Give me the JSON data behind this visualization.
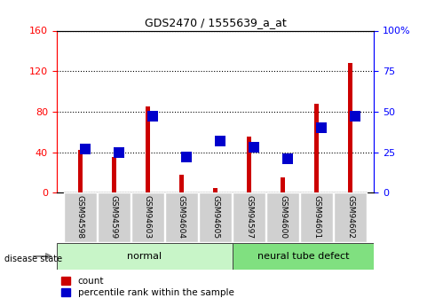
{
  "title": "GDS2470 / 1555639_a_at",
  "samples": [
    "GSM94598",
    "GSM94599",
    "GSM94603",
    "GSM94604",
    "GSM94605",
    "GSM94597",
    "GSM94600",
    "GSM94601",
    "GSM94602"
  ],
  "count_values": [
    42,
    35,
    85,
    18,
    5,
    55,
    15,
    88,
    128
  ],
  "percentile_values": [
    27,
    25,
    47,
    22,
    32,
    28,
    21,
    40,
    47
  ],
  "ylim_left": [
    0,
    160
  ],
  "ylim_right": [
    0,
    100
  ],
  "yticks_left": [
    0,
    40,
    80,
    120,
    160
  ],
  "yticks_right": [
    0,
    25,
    50,
    75,
    100
  ],
  "yticklabels_right": [
    "0",
    "25",
    "50",
    "75",
    "100%"
  ],
  "groups": [
    {
      "label": "normal",
      "start": 0,
      "end": 5,
      "color": "#c8f5c8"
    },
    {
      "label": "neural tube defect",
      "start": 5,
      "end": 9,
      "color": "#80e080"
    }
  ],
  "bar_color_red": "#cc0000",
  "bar_color_blue": "#0000cc",
  "legend_count": "count",
  "legend_percentile": "percentile rank within the sample",
  "red_bar_width": 0.12,
  "blue_marker_size": 8
}
